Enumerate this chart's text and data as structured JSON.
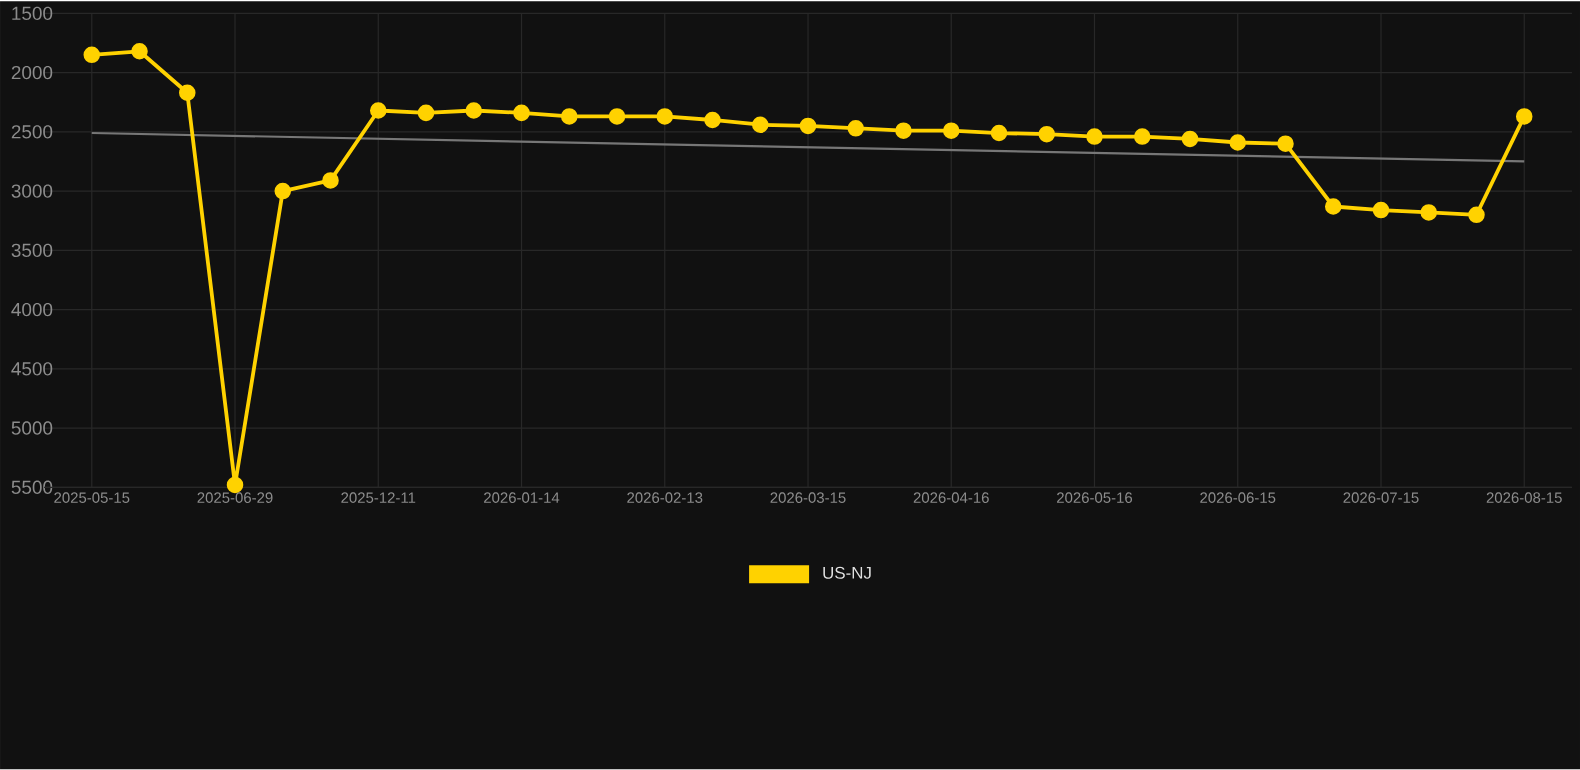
{
  "chart_data": {
    "type": "line",
    "categories": [
      "2025-05-15",
      null,
      null,
      "2025-06-29",
      null,
      null,
      "2025-12-11",
      null,
      null,
      "2026-01-14",
      null,
      null,
      "2026-02-13",
      null,
      null,
      "2026-03-15",
      null,
      null,
      "2026-04-16",
      null,
      null,
      "2026-05-16",
      null,
      null,
      "2026-06-15",
      null,
      null,
      "2026-07-15",
      null,
      null,
      "2026-08-15"
    ],
    "series": [
      {
        "name": "US-NJ",
        "color": "#ffd200",
        "marker": "circle",
        "values": [
          1850,
          1820,
          2170,
          5480,
          3000,
          2910,
          2320,
          2340,
          2320,
          2340,
          2370,
          2370,
          2370,
          2400,
          2440,
          2450,
          2470,
          2490,
          2490,
          2510,
          2520,
          2540,
          2540,
          2560,
          2590,
          2600,
          3130,
          3160,
          3180,
          3200,
          2370
        ]
      },
      {
        "type": "line",
        "color": "#777777",
        "marker": "none",
        "values": [
          2510,
          null,
          null,
          null,
          null,
          null,
          null,
          null,
          null,
          null,
          null,
          null,
          null,
          null,
          null,
          null,
          null,
          null,
          null,
          null,
          null,
          null,
          null,
          null,
          null,
          null,
          null,
          null,
          null,
          null,
          2750
        ]
      }
    ],
    "ylim": [
      5500,
      1500
    ],
    "yticks": [
      1500,
      2000,
      2500,
      3000,
      3500,
      4000,
      4500,
      5000,
      5500
    ],
    "grid": true,
    "legend": "bottom",
    "line_style": "solid"
  }
}
